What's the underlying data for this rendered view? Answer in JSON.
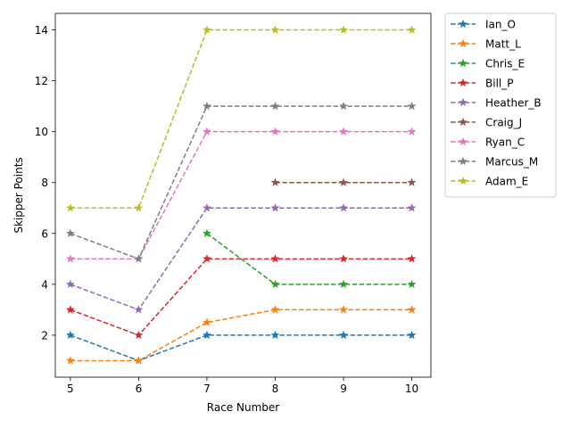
{
  "chart_data": {
    "type": "line",
    "title": "",
    "xlabel": "Race Number",
    "ylabel": "Skipper Points",
    "xlim": [
      4.78,
      10.28
    ],
    "ylim": [
      0.35,
      14.65
    ],
    "xticks": [
      5,
      6,
      7,
      8,
      9,
      10
    ],
    "yticks": [
      2,
      4,
      6,
      8,
      10,
      12,
      14
    ],
    "grid": false,
    "legend_position": "outside-top-right",
    "marker": "star",
    "line_style": "dashed",
    "series": [
      {
        "name": "Ian_O",
        "color": "#1f77b4",
        "x": [
          5,
          6,
          7,
          8,
          9,
          10
        ],
        "y": [
          2,
          1,
          2,
          2,
          2,
          2
        ]
      },
      {
        "name": "Matt_L",
        "color": "#ff7f0e",
        "x": [
          5,
          6,
          7,
          8,
          9,
          10
        ],
        "y": [
          1,
          1,
          2.5,
          3,
          3,
          3
        ]
      },
      {
        "name": "Chris_E",
        "color": "#2ca02c",
        "x": [
          7,
          8,
          9,
          10
        ],
        "y": [
          6,
          4,
          4,
          4
        ]
      },
      {
        "name": "Bill_P",
        "color": "#d62728",
        "x": [
          5,
          6,
          7,
          8,
          9,
          10
        ],
        "y": [
          3,
          2,
          5,
          5,
          5,
          5
        ]
      },
      {
        "name": "Heather_B",
        "color": "#9467bd",
        "x": [
          5,
          6,
          7,
          8,
          9,
          10
        ],
        "y": [
          4,
          3,
          7,
          7,
          7,
          7
        ]
      },
      {
        "name": "Craig_J",
        "color": "#8c564b",
        "x": [
          8,
          9,
          10
        ],
        "y": [
          8,
          8,
          8
        ]
      },
      {
        "name": "Ryan_C",
        "color": "#e377c2",
        "x": [
          5,
          6,
          7,
          8,
          9,
          10
        ],
        "y": [
          5,
          5,
          10,
          10,
          10,
          10
        ]
      },
      {
        "name": "Marcus_M",
        "color": "#7f7f7f",
        "x": [
          5,
          6,
          7,
          8,
          9,
          10
        ],
        "y": [
          6,
          5,
          11,
          11,
          11,
          11
        ]
      },
      {
        "name": "Adam_E",
        "color": "#bcbd22",
        "x": [
          5,
          6,
          7,
          8,
          9,
          10
        ],
        "y": [
          7,
          7,
          14,
          14,
          14,
          14
        ]
      }
    ]
  }
}
